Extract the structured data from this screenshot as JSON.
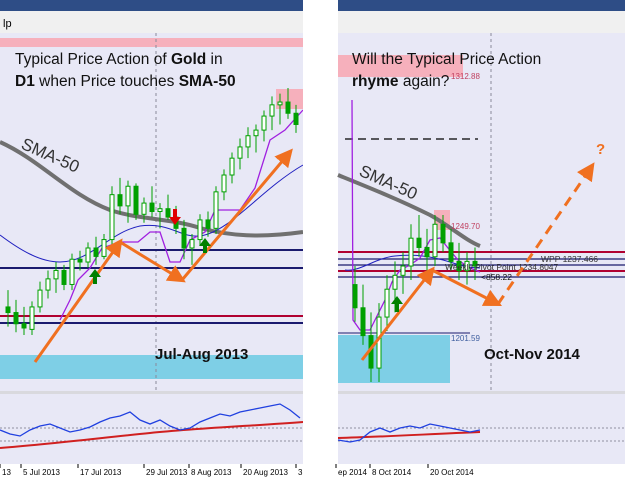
{
  "left_panel": {
    "window_title_fragment": "lp",
    "caption_line1_a": "Typical Price Action of ",
    "caption_line1_b": "Gold",
    "caption_line1_c": " in",
    "caption_line2_a": "D1",
    "caption_line2_b": " when Price touches ",
    "caption_line2_c": "SMA-50",
    "sma_label": "SMA-50",
    "period_label": "Jul-Aug 2013",
    "x_tick_labels": [
      "13",
      "5 Jul 2013",
      "17 Jul 2013",
      "29 Jul 2013",
      "8 Aug 2013",
      "20 Aug 2013",
      "3"
    ]
  },
  "right_panel": {
    "caption_line1": "Will the Typical Price Action",
    "caption_line2_a": "rhyme",
    "caption_line2_b": " again?",
    "sma_label": "SMA-50",
    "question_mark": "?",
    "period_label": "Oct-Nov 2014",
    "price_tags": [
      "1312.88",
      "1249.70",
      "1201.59"
    ],
    "pivot_labels": [
      "WPP  1237.466",
      "Weekly Pivot Point  1234.8047"
    ],
    "price_readout": "<858.22",
    "x_tick_labels": [
      "ep 2014",
      "8 Oct 2014",
      "20 Oct 2014"
    ]
  },
  "colors": {
    "chart_bg": "#e8e8f6",
    "candle": "#00a000",
    "sma50": "#707070",
    "ma_blue": "#2020c0",
    "ma_purple": "#a020e0",
    "level_navy": "#1a1a6e",
    "level_red": "#b00030",
    "support_zone": "#7ecfe6",
    "resistance_zone": "#f6b0bc",
    "arrow_orange": "#f07020",
    "arrow_green": "#008000",
    "arrow_red": "#e00000",
    "oscillator_blue": "#2040e0",
    "oscillator_red": "#d02020"
  },
  "chart_data": [
    {
      "type": "candlestick",
      "title": "Typical Price Action of Gold in D1 when Price touches SMA-50",
      "period": "Jul-Aug 2013",
      "x_ticks": [
        "13",
        "5 Jul 2013",
        "17 Jul 2013",
        "29 Jul 2013",
        "8 Aug 2013",
        "20 Aug 2013",
        "3"
      ],
      "series": [
        {
          "name": "SMA-50"
        }
      ],
      "annotations": [
        "orange price-path arrows",
        "green up arrows at SMA touch",
        "red down arrow",
        "support zone",
        "resistance zone"
      ],
      "candles": [
        {
          "o": 300,
          "h": 312,
          "l": 286,
          "c": 296
        },
        {
          "o": 296,
          "h": 305,
          "l": 282,
          "c": 288
        },
        {
          "o": 288,
          "h": 300,
          "l": 280,
          "c": 285
        },
        {
          "o": 284,
          "h": 304,
          "l": 280,
          "c": 300
        },
        {
          "o": 300,
          "h": 318,
          "l": 296,
          "c": 312
        },
        {
          "o": 312,
          "h": 326,
          "l": 306,
          "c": 320
        },
        {
          "o": 320,
          "h": 332,
          "l": 310,
          "c": 326
        },
        {
          "o": 326,
          "h": 330,
          "l": 312,
          "c": 316
        },
        {
          "o": 316,
          "h": 338,
          "l": 312,
          "c": 334
        },
        {
          "o": 334,
          "h": 340,
          "l": 326,
          "c": 332
        },
        {
          "o": 332,
          "h": 346,
          "l": 328,
          "c": 342
        },
        {
          "o": 342,
          "h": 350,
          "l": 330,
          "c": 336
        },
        {
          "o": 336,
          "h": 352,
          "l": 334,
          "c": 348
        },
        {
          "o": 348,
          "h": 386,
          "l": 344,
          "c": 380
        },
        {
          "o": 380,
          "h": 392,
          "l": 366,
          "c": 372
        },
        {
          "o": 372,
          "h": 390,
          "l": 360,
          "c": 386
        },
        {
          "o": 386,
          "h": 388,
          "l": 362,
          "c": 366
        },
        {
          "o": 366,
          "h": 378,
          "l": 360,
          "c": 374
        },
        {
          "o": 374,
          "h": 386,
          "l": 364,
          "c": 368
        },
        {
          "o": 368,
          "h": 374,
          "l": 356,
          "c": 370
        },
        {
          "o": 370,
          "h": 380,
          "l": 362,
          "c": 364
        },
        {
          "o": 364,
          "h": 372,
          "l": 352,
          "c": 356
        },
        {
          "o": 356,
          "h": 362,
          "l": 334,
          "c": 342
        },
        {
          "o": 342,
          "h": 352,
          "l": 330,
          "c": 348
        },
        {
          "o": 348,
          "h": 366,
          "l": 344,
          "c": 362
        },
        {
          "o": 362,
          "h": 368,
          "l": 350,
          "c": 356
        },
        {
          "o": 356,
          "h": 386,
          "l": 352,
          "c": 382
        },
        {
          "o": 382,
          "h": 398,
          "l": 376,
          "c": 394
        },
        {
          "o": 394,
          "h": 410,
          "l": 388,
          "c": 406
        },
        {
          "o": 406,
          "h": 420,
          "l": 398,
          "c": 414
        },
        {
          "o": 414,
          "h": 428,
          "l": 406,
          "c": 422
        },
        {
          "o": 422,
          "h": 430,
          "l": 410,
          "c": 426
        },
        {
          "o": 426,
          "h": 440,
          "l": 418,
          "c": 436
        },
        {
          "o": 436,
          "h": 450,
          "l": 426,
          "c": 444
        },
        {
          "o": 444,
          "h": 452,
          "l": 430,
          "c": 446
        },
        {
          "o": 446,
          "h": 456,
          "l": 434,
          "c": 438
        },
        {
          "o": 438,
          "h": 444,
          "l": 424,
          "c": 430
        }
      ]
    },
    {
      "type": "candlestick",
      "title": "Will the Typical Price Action rhyme again?",
      "period": "Oct-Nov 2014",
      "x_ticks": [
        "ep 2014",
        "8 Oct 2014",
        "20 Oct 2014"
      ],
      "levels": [
        {
          "label": "WPP",
          "value": 1237.466
        },
        {
          "label": "Weekly Pivot Point",
          "value": 1234.8047
        }
      ],
      "price_tags": [
        1312.88,
        1249.7,
        1201.59
      ],
      "series": [
        {
          "name": "SMA-50"
        }
      ],
      "candles": [
        {
          "o": 1222,
          "h": 1230,
          "l": 1206,
          "c": 1212
        },
        {
          "o": 1212,
          "h": 1222,
          "l": 1196,
          "c": 1200
        },
        {
          "o": 1200,
          "h": 1210,
          "l": 1180,
          "c": 1186
        },
        {
          "o": 1186,
          "h": 1214,
          "l": 1180,
          "c": 1208
        },
        {
          "o": 1208,
          "h": 1226,
          "l": 1202,
          "c": 1220
        },
        {
          "o": 1220,
          "h": 1232,
          "l": 1210,
          "c": 1226
        },
        {
          "o": 1226,
          "h": 1236,
          "l": 1218,
          "c": 1230
        },
        {
          "o": 1230,
          "h": 1248,
          "l": 1224,
          "c": 1242
        },
        {
          "o": 1242,
          "h": 1252,
          "l": 1234,
          "c": 1238
        },
        {
          "o": 1238,
          "h": 1246,
          "l": 1228,
          "c": 1234
        },
        {
          "o": 1234,
          "h": 1252,
          "l": 1230,
          "c": 1248
        },
        {
          "o": 1248,
          "h": 1252,
          "l": 1236,
          "c": 1240
        },
        {
          "o": 1240,
          "h": 1246,
          "l": 1228,
          "c": 1232
        },
        {
          "o": 1232,
          "h": 1240,
          "l": 1224,
          "c": 1228
        },
        {
          "o": 1228,
          "h": 1236,
          "l": 1222,
          "c": 1232
        },
        {
          "o": 1232,
          "h": 1238,
          "l": 1224,
          "c": 1230
        }
      ]
    }
  ]
}
